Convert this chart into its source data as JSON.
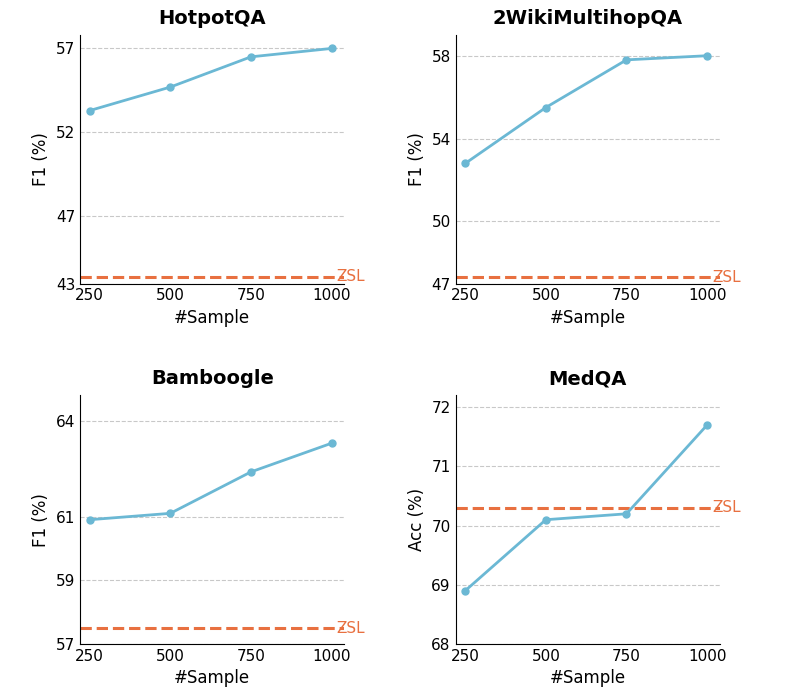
{
  "subplots": [
    {
      "title": "HotpotQA",
      "ylabel": "F1 (%)",
      "xlabel": "#Sample",
      "x": [
        250,
        500,
        750,
        1000
      ],
      "y": [
        53.3,
        54.7,
        56.5,
        57.0
      ],
      "zsl": 43.4,
      "ylim": [
        43.0,
        57.8
      ],
      "yticks": [
        43,
        47,
        52,
        57
      ]
    },
    {
      "title": "2WikiMultihopQA",
      "ylabel": "F1 (%)",
      "xlabel": "#Sample",
      "x": [
        250,
        500,
        750,
        1000
      ],
      "y": [
        52.8,
        55.5,
        57.8,
        58.0
      ],
      "zsl": 47.3,
      "ylim": [
        47.0,
        59.0
      ],
      "yticks": [
        47,
        50,
        54,
        58
      ]
    },
    {
      "title": "Bamboogle",
      "ylabel": "F1 (%)",
      "xlabel": "#Sample",
      "x": [
        250,
        500,
        750,
        1000
      ],
      "y": [
        60.9,
        61.1,
        62.4,
        63.3
      ],
      "zsl": 57.5,
      "ylim": [
        57.0,
        64.8
      ],
      "yticks": [
        57,
        59,
        61,
        64
      ]
    },
    {
      "title": "MedQA",
      "ylabel": "Acc (%)",
      "xlabel": "#Sample",
      "x": [
        250,
        500,
        750,
        1000
      ],
      "y": [
        68.9,
        70.1,
        70.2,
        71.7
      ],
      "zsl": 70.3,
      "ylim": [
        68.0,
        72.2
      ],
      "yticks": [
        68,
        69,
        70,
        71,
        72
      ]
    }
  ],
  "line_color": "#6BB8D4",
  "zsl_color": "#E87040",
  "line_width": 2.0,
  "marker": "o",
  "marker_size": 5,
  "grid_color": "#bbbbbb",
  "grid_alpha": 0.8,
  "title_fontsize": 14,
  "label_fontsize": 12,
  "tick_fontsize": 11,
  "zsl_fontsize": 11,
  "background_color": "#ffffff"
}
